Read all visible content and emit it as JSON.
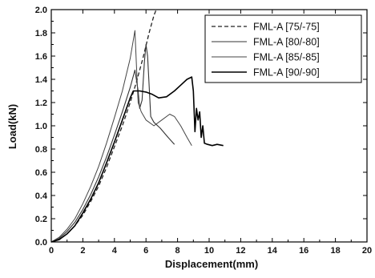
{
  "chart_data": {
    "type": "line",
    "xlabel": "Displacement(mm)",
    "ylabel": "Load(kN)",
    "xlim": [
      0,
      20
    ],
    "ylim": [
      0.0,
      2.0
    ],
    "xticks": [
      0,
      2,
      4,
      6,
      8,
      10,
      12,
      14,
      16,
      18,
      20
    ],
    "yticks": [
      0.0,
      0.2,
      0.4,
      0.6,
      0.8,
      1.0,
      1.2,
      1.4,
      1.6,
      1.8,
      2.0
    ],
    "xtick_labels": [
      "0",
      "2",
      "4",
      "6",
      "8",
      "10",
      "12",
      "14",
      "16",
      "18",
      "20"
    ],
    "ytick_labels": [
      "0.0",
      "0.2",
      "0.4",
      "0.6",
      "0.8",
      "1.0",
      "1.2",
      "1.4",
      "1.6",
      "1.8",
      "2.0"
    ],
    "grid": false,
    "legend_position": "top-right",
    "series": [
      {
        "name": "FML-A [75/-75]",
        "style": "dashed",
        "color": "#222222",
        "points": [
          [
            0,
            0
          ],
          [
            0.5,
            0.02
          ],
          [
            1,
            0.07
          ],
          [
            1.5,
            0.14
          ],
          [
            2,
            0.23
          ],
          [
            2.5,
            0.35
          ],
          [
            3,
            0.48
          ],
          [
            3.5,
            0.64
          ],
          [
            4,
            0.82
          ],
          [
            4.5,
            1.0
          ],
          [
            5,
            1.2
          ],
          [
            5.4,
            1.38
          ],
          [
            5.8,
            1.58
          ],
          [
            6.2,
            1.8
          ],
          [
            6.5,
            1.95
          ],
          [
            6.65,
            2.0
          ]
        ]
      },
      {
        "name": "FML-A [80/-80]",
        "style": "solid",
        "color": "#333333",
        "points": [
          [
            0,
            0
          ],
          [
            0.5,
            0.03
          ],
          [
            1,
            0.09
          ],
          [
            1.5,
            0.17
          ],
          [
            2,
            0.28
          ],
          [
            2.5,
            0.41
          ],
          [
            3,
            0.56
          ],
          [
            3.5,
            0.73
          ],
          [
            4,
            0.92
          ],
          [
            4.5,
            1.12
          ],
          [
            5,
            1.33
          ],
          [
            5.3,
            1.48
          ],
          [
            5.5,
            1.3
          ],
          [
            5.6,
            1.15
          ],
          [
            5.75,
            1.22
          ],
          [
            5.9,
            1.55
          ],
          [
            6.0,
            1.7
          ],
          [
            6.1,
            1.6
          ],
          [
            6.2,
            1.35
          ],
          [
            6.3,
            1.08
          ],
          [
            6.5,
            1.03
          ],
          [
            6.9,
            0.98
          ],
          [
            7.4,
            0.9
          ],
          [
            7.8,
            0.84
          ]
        ]
      },
      {
        "name": "FML-A [85/-85]",
        "style": "solid",
        "color": "#444444",
        "points": [
          [
            0,
            0
          ],
          [
            0.5,
            0.04
          ],
          [
            1,
            0.11
          ],
          [
            1.5,
            0.2
          ],
          [
            2,
            0.33
          ],
          [
            2.5,
            0.48
          ],
          [
            3,
            0.65
          ],
          [
            3.5,
            0.85
          ],
          [
            4,
            1.07
          ],
          [
            4.5,
            1.3
          ],
          [
            5,
            1.58
          ],
          [
            5.3,
            1.82
          ],
          [
            5.4,
            1.5
          ],
          [
            5.5,
            1.2
          ],
          [
            5.7,
            1.12
          ],
          [
            6.0,
            1.05
          ],
          [
            6.5,
            1.0
          ],
          [
            7.0,
            1.05
          ],
          [
            7.5,
            1.1
          ],
          [
            7.8,
            1.08
          ],
          [
            8.2,
            1.0
          ],
          [
            8.6,
            0.9
          ],
          [
            8.9,
            0.83
          ]
        ]
      },
      {
        "name": "FML-A [90/-90]",
        "style": "solid",
        "color": "#000000",
        "points": [
          [
            0,
            0
          ],
          [
            0.5,
            0.02
          ],
          [
            1,
            0.07
          ],
          [
            1.5,
            0.14
          ],
          [
            2,
            0.25
          ],
          [
            2.5,
            0.37
          ],
          [
            3,
            0.51
          ],
          [
            3.5,
            0.68
          ],
          [
            4,
            0.86
          ],
          [
            4.5,
            1.05
          ],
          [
            5,
            1.24
          ],
          [
            5.2,
            1.3
          ],
          [
            5.6,
            1.3
          ],
          [
            6.0,
            1.29
          ],
          [
            6.4,
            1.27
          ],
          [
            6.8,
            1.24
          ],
          [
            7.3,
            1.25
          ],
          [
            7.8,
            1.3
          ],
          [
            8.2,
            1.35
          ],
          [
            8.6,
            1.4
          ],
          [
            8.9,
            1.42
          ],
          [
            9.0,
            1.3
          ],
          [
            9.1,
            0.95
          ],
          [
            9.2,
            1.15
          ],
          [
            9.3,
            1.05
          ],
          [
            9.4,
            1.12
          ],
          [
            9.5,
            0.9
          ],
          [
            9.6,
            1.0
          ],
          [
            9.7,
            0.85
          ],
          [
            9.9,
            0.84
          ],
          [
            10.2,
            0.83
          ],
          [
            10.5,
            0.84
          ],
          [
            10.9,
            0.83
          ]
        ]
      }
    ]
  }
}
